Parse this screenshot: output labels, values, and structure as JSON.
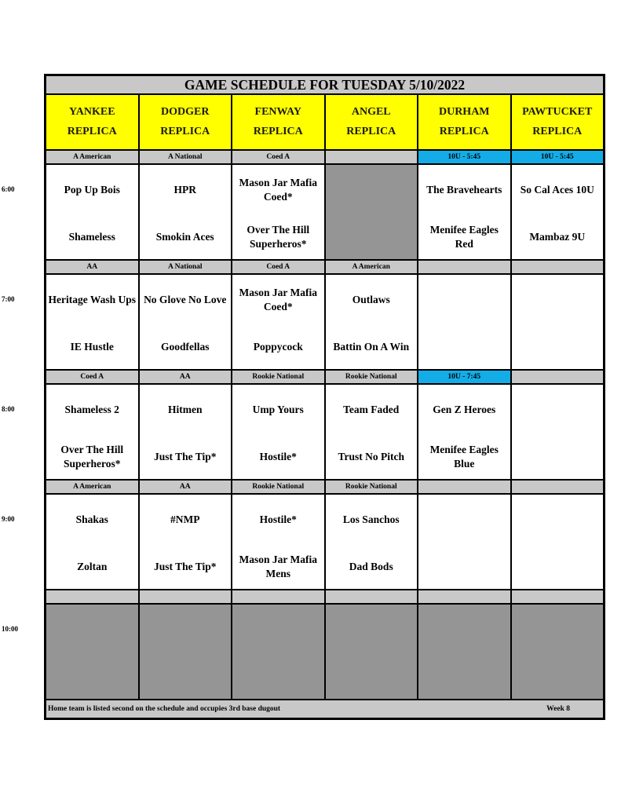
{
  "title": "GAME SCHEDULE FOR TUESDAY 5/10/2022",
  "fields": [
    {
      "name": "YANKEE",
      "sub": "REPLICA"
    },
    {
      "name": "DODGER",
      "sub": "REPLICA"
    },
    {
      "name": "FENWAY",
      "sub": "REPLICA"
    },
    {
      "name": "ANGEL",
      "sub": "REPLICA"
    },
    {
      "name": "DURHAM",
      "sub": "REPLICA"
    },
    {
      "name": "PAWTUCKET",
      "sub": "REPLICA"
    }
  ],
  "colors": {
    "header": "#ffff00",
    "division": "#c8c8c8",
    "special_division": "#14ace6",
    "unused": "#959595"
  },
  "slots": [
    {
      "time": "6:00",
      "divisions": [
        {
          "label": "A American"
        },
        {
          "label": "A National"
        },
        {
          "label": "Coed A"
        },
        {
          "label": ""
        },
        {
          "label": "10U - 5:45",
          "special": true
        },
        {
          "label": "10U - 5:45",
          "special": true
        }
      ],
      "games": [
        {
          "away": "Pop Up Bois",
          "home": "Shameless"
        },
        {
          "away": "HPR",
          "home": "Smokin Aces"
        },
        {
          "away": "Mason Jar Mafia Coed*",
          "home": "Over The Hill Superheros*"
        },
        {
          "unused": true
        },
        {
          "away": "The Bravehearts",
          "home": "Menifee Eagles Red"
        },
        {
          "away": "So Cal Aces 10U",
          "home": "Mambaz 9U"
        }
      ]
    },
    {
      "time": "7:00",
      "divisions": [
        {
          "label": "AA"
        },
        {
          "label": "A National"
        },
        {
          "label": "Coed A"
        },
        {
          "label": "A American"
        },
        {
          "label": ""
        },
        {
          "label": ""
        }
      ],
      "games": [
        {
          "away": "Heritage Wash Ups",
          "home": "IE Hustle"
        },
        {
          "away": "No Glove No Love",
          "home": "Goodfellas"
        },
        {
          "away": "Mason Jar Mafia Coed*",
          "home": "Poppycock"
        },
        {
          "away": "Outlaws",
          "home": "Battin On A Win"
        },
        {
          "away": "",
          "home": ""
        },
        {
          "away": "",
          "home": ""
        }
      ]
    },
    {
      "time": "8:00",
      "divisions": [
        {
          "label": "Coed A"
        },
        {
          "label": "AA"
        },
        {
          "label": "Rookie National"
        },
        {
          "label": "Rookie National"
        },
        {
          "label": "10U - 7:45",
          "special": true
        },
        {
          "label": ""
        }
      ],
      "games": [
        {
          "away": "Shameless 2",
          "home": "Over The Hill Superheros*"
        },
        {
          "away": "Hitmen",
          "home": "Just The Tip*"
        },
        {
          "away": "Ump Yours",
          "home": "Hostile*"
        },
        {
          "away": "Team Faded",
          "home": "Trust No Pitch"
        },
        {
          "away": "Gen Z Heroes",
          "home": "Menifee Eagles Blue"
        },
        {
          "away": "",
          "home": ""
        }
      ]
    },
    {
      "time": "9:00",
      "divisions": [
        {
          "label": "A American"
        },
        {
          "label": "AA"
        },
        {
          "label": "Rookie National"
        },
        {
          "label": "Rookie National"
        },
        {
          "label": ""
        },
        {
          "label": ""
        }
      ],
      "games": [
        {
          "away": "Shakas",
          "home": "Zoltan"
        },
        {
          "away": "#NMP",
          "home": "Just The Tip*"
        },
        {
          "away": "Hostile*",
          "home": "Mason Jar Mafia Mens"
        },
        {
          "away": "Los Sanchos",
          "home": "Dad Bods"
        },
        {
          "away": "",
          "home": ""
        },
        {
          "away": "",
          "home": ""
        }
      ]
    },
    {
      "time": "10:00",
      "divisions": [
        {
          "label": ""
        },
        {
          "label": ""
        },
        {
          "label": ""
        },
        {
          "label": ""
        },
        {
          "label": ""
        },
        {
          "label": ""
        }
      ],
      "games": [
        {
          "unused": true
        },
        {
          "unused": true
        },
        {
          "unused": true
        },
        {
          "unused": true
        },
        {
          "unused": true
        },
        {
          "unused": true
        }
      ]
    }
  ],
  "footer": {
    "note": "Home team is listed second on the schedule and occupies 3rd base dugout",
    "week": "Week 8"
  }
}
